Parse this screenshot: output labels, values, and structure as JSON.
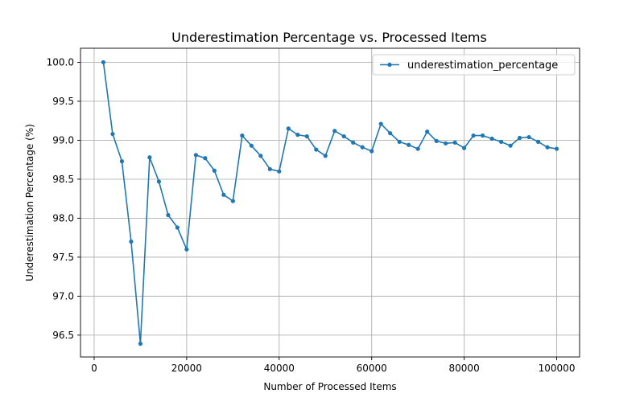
{
  "chart_data": {
    "type": "line",
    "title": "Underestimation Percentage vs. Processed Items",
    "xlabel": "Number of Processed Items",
    "ylabel": "Underestimation Percentage (%)",
    "xlim": [
      -2950,
      104950
    ],
    "ylim": [
      96.22,
      100.18
    ],
    "x_ticks": [
      0,
      20000,
      40000,
      60000,
      80000,
      100000
    ],
    "x_tick_labels": [
      "0",
      "20000",
      "40000",
      "60000",
      "80000",
      "100000"
    ],
    "y_ticks": [
      96.5,
      97.0,
      97.5,
      98.0,
      98.5,
      99.0,
      99.5,
      100.0
    ],
    "y_tick_labels": [
      "96.5",
      "97.0",
      "97.5",
      "98.0",
      "98.5",
      "99.0",
      "99.5",
      "100.0"
    ],
    "grid": true,
    "legend_position": "top-right",
    "series": [
      {
        "name": "underestimation_percentage",
        "color": "#1f77b4",
        "marker": "circle",
        "x": [
          2000,
          4000,
          6000,
          8000,
          10000,
          12000,
          14000,
          16000,
          18000,
          20000,
          22000,
          24000,
          26000,
          28000,
          30000,
          32000,
          34000,
          36000,
          38000,
          40000,
          42000,
          44000,
          46000,
          48000,
          50000,
          52000,
          54000,
          56000,
          58000,
          60000,
          62000,
          64000,
          66000,
          68000,
          70000,
          72000,
          74000,
          76000,
          78000,
          80000,
          82000,
          84000,
          86000,
          88000,
          90000,
          92000,
          94000,
          96000,
          98000,
          100000
        ],
        "y": [
          100.0,
          99.08,
          98.73,
          97.7,
          96.39,
          98.78,
          98.47,
          98.04,
          97.88,
          97.6,
          98.81,
          98.77,
          98.61,
          98.3,
          98.22,
          99.06,
          98.93,
          98.8,
          98.63,
          98.6,
          99.15,
          99.07,
          99.05,
          98.88,
          98.8,
          99.12,
          99.05,
          98.97,
          98.91,
          98.86,
          99.21,
          99.09,
          98.98,
          98.94,
          98.89,
          99.11,
          98.99,
          98.96,
          98.97,
          98.9,
          99.06,
          99.06,
          99.02,
          98.98,
          98.93,
          99.03,
          99.04,
          98.98,
          98.91,
          98.89
        ]
      }
    ]
  }
}
